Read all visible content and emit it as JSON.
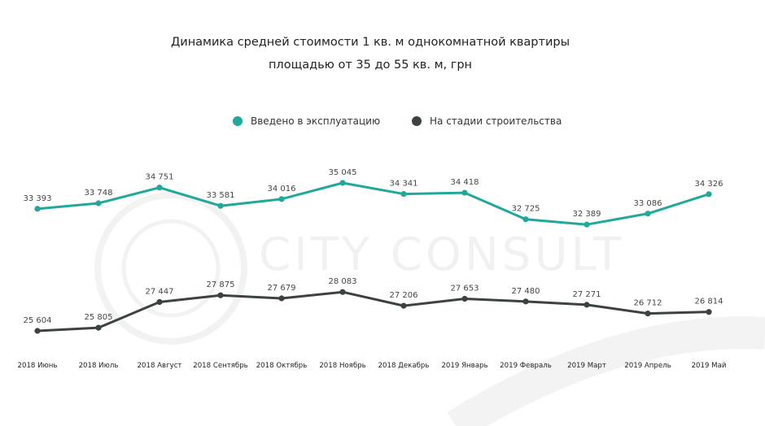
{
  "chart_data": {
    "type": "line",
    "title": "Динамика средней стоимости 1 кв. м однокомнатной квартиры",
    "subtitle": "площадью от 35 до 55 кв. м, грн",
    "categories": [
      "2018 Июнь",
      "2018 Июль",
      "2018 Август",
      "2018 Сентябрь",
      "2018 Октябрь",
      "2018 Ноябрь",
      "2018 Декабрь",
      "2019 Январь",
      "2019 Февраль",
      "2019 Март",
      "2019 Апрель",
      "2019 Май"
    ],
    "series": [
      {
        "name": "Введено в эксплуатацию",
        "color": "#20a99b",
        "values": [
          33393,
          33748,
          34751,
          33581,
          34016,
          35045,
          34341,
          34418,
          32725,
          32389,
          33086,
          34326
        ],
        "labels": [
          "33 393",
          "33 748",
          "34 751",
          "33 581",
          "34 016",
          "35 045",
          "34 341",
          "34 418",
          "32 725",
          "32 389",
          "33 086",
          "34 326"
        ]
      },
      {
        "name": "На стадии строительства",
        "color": "#3c4241",
        "values": [
          25604,
          25805,
          27447,
          27875,
          27679,
          28083,
          27206,
          27653,
          27480,
          27271,
          26712,
          26814
        ],
        "labels": [
          "25 604",
          "25 805",
          "27 447",
          "27 875",
          "27 679",
          "28 083",
          "27 206",
          "27 653",
          "27 480",
          "27 271",
          "26 712",
          "26 814"
        ]
      }
    ],
    "legend_position": "top-center",
    "grid": false,
    "watermark": "CITY CONSULT"
  }
}
